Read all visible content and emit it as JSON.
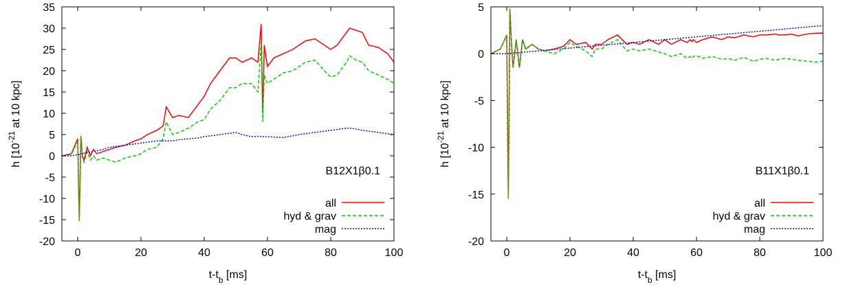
{
  "chart_data": [
    {
      "type": "line",
      "x_label": [
        "t-t",
        "b",
        " [ms]"
      ],
      "y_label": [
        "h [10",
        "-21",
        " at 10 kpc]"
      ],
      "annotation": "B12X1β0.1",
      "legend": "lower right",
      "xlim": [
        -5,
        100
      ],
      "xticks": [
        0,
        20,
        40,
        60,
        80,
        100
      ],
      "ylim": [
        -20,
        35
      ],
      "yticks": [
        -20,
        -15,
        -10,
        -5,
        0,
        5,
        10,
        15,
        20,
        25,
        30,
        35
      ],
      "x": [
        -5,
        -2,
        0,
        0.5,
        1,
        1.5,
        2,
        3,
        4,
        5,
        6,
        8,
        10,
        12,
        15,
        18,
        20,
        22,
        25,
        27,
        28,
        30,
        32,
        35,
        38,
        40,
        42,
        45,
        48,
        50,
        52,
        55,
        57,
        58,
        58.5,
        59,
        60,
        62,
        65,
        68,
        70,
        72,
        75,
        78,
        80,
        82,
        85,
        86,
        88,
        90,
        92,
        95,
        98,
        100
      ],
      "series": [
        {
          "name": "all",
          "color": "#ff0000",
          "dash": "solid",
          "values": [
            0,
            0.5,
            4,
            -15.3,
            4.6,
            0,
            -1,
            2,
            0,
            1.5,
            0.5,
            1,
            1.5,
            2,
            2.5,
            3.5,
            4,
            5,
            6,
            7,
            11.5,
            9,
            9.5,
            9,
            12,
            14,
            17,
            20,
            23,
            23,
            22,
            23,
            22,
            31,
            10,
            26,
            21,
            23,
            24,
            25,
            26,
            27,
            27.5,
            26,
            25,
            26,
            29,
            30,
            29.5,
            29,
            26,
            25.5,
            24,
            22
          ]
        },
        {
          "name": "hyd & grav",
          "color": "#00d000",
          "dash": "dashed",
          "values": [
            0,
            0.3,
            3.5,
            -15.3,
            4.7,
            -0.5,
            -1.5,
            1,
            -1,
            0,
            -1,
            -0.5,
            -1,
            -1.5,
            -0.5,
            0,
            0.5,
            1.5,
            2,
            4,
            8,
            5,
            5.5,
            6.5,
            8,
            8.5,
            11,
            13,
            16,
            16,
            17,
            17,
            15,
            27,
            8,
            19,
            17,
            18,
            19.5,
            20,
            21,
            22,
            22.5,
            20,
            18.5,
            19,
            22,
            23.5,
            22.5,
            22,
            20,
            19,
            18,
            17
          ]
        },
        {
          "name": "mag",
          "color": "#0000ff",
          "dash": "dotted",
          "values": [
            0,
            0,
            0.3,
            0.3,
            0.5,
            0.5,
            0.6,
            0.8,
            0.9,
            1,
            1.2,
            1.5,
            2,
            2.2,
            2.5,
            2.8,
            3,
            3.2,
            3.5,
            3.5,
            3.5,
            3.5,
            3.8,
            4,
            4.2,
            4.5,
            4.7,
            5,
            5.3,
            5.5,
            5,
            4.5,
            4.6,
            4.5,
            4.5,
            4.5,
            4.5,
            4.4,
            4.3,
            4.7,
            5,
            5.2,
            5.5,
            5.8,
            6,
            6.2,
            6.5,
            6.5,
            6.3,
            6,
            5.8,
            5.5,
            5.2,
            5
          ]
        }
      ]
    },
    {
      "type": "line",
      "x_label": [
        "t-t",
        "b",
        " [ms]"
      ],
      "y_label": [
        "h [10",
        "-21",
        " at 10 kpc]"
      ],
      "annotation": "B11X1β0.1",
      "legend": "lower right",
      "xlim": [
        -5,
        100
      ],
      "xticks": [
        0,
        20,
        40,
        60,
        80,
        100
      ],
      "ylim": [
        -20,
        5
      ],
      "yticks": [
        -20,
        -15,
        -10,
        -5,
        0,
        5
      ],
      "x": [
        -5,
        -2,
        0,
        0.5,
        1,
        1.5,
        2,
        3,
        4,
        5,
        6,
        8,
        10,
        12,
        15,
        18,
        20,
        22,
        25,
        27,
        28,
        30,
        32,
        35,
        38,
        40,
        42,
        45,
        48,
        50,
        52,
        55,
        57,
        58,
        58.5,
        59,
        60,
        62,
        65,
        68,
        70,
        72,
        75,
        78,
        80,
        82,
        85,
        86,
        88,
        90,
        92,
        95,
        98,
        100
      ],
      "series": [
        {
          "name": "all",
          "color": "#ff0000",
          "dash": "solid",
          "values": [
            0,
            0.5,
            2,
            -15.5,
            4.8,
            1,
            -1.5,
            1.5,
            -1.5,
            1.5,
            0.5,
            1,
            0.5,
            0.3,
            0.5,
            0.8,
            1.5,
            1,
            1.2,
            0.5,
            1,
            1,
            1.5,
            2,
            1,
            1.2,
            1,
            1.5,
            1,
            1.5,
            1,
            1.5,
            1.2,
            1.5,
            1.3,
            1.5,
            1.2,
            1.5,
            1.8,
            1.5,
            1.8,
            1.7,
            2,
            1.8,
            2,
            2,
            2.1,
            2,
            2,
            2.1,
            1.9,
            2.1,
            2.2,
            2.2
          ]
        },
        {
          "name": "hyd & grav",
          "color": "#00d000",
          "dash": "dashed",
          "values": [
            0,
            0.5,
            2,
            -15.5,
            4.8,
            1,
            -1.5,
            1.5,
            -1.5,
            1.5,
            0.5,
            1,
            0.5,
            0.3,
            0,
            0.5,
            1.2,
            0.8,
            0.3,
            -0.3,
            0.5,
            0.5,
            1,
            1.5,
            0.3,
            0.5,
            0.3,
            0.5,
            0.2,
            0,
            -0.3,
            0,
            -0.5,
            -0.3,
            -0.5,
            -0.3,
            -0.2,
            -0.5,
            -0.3,
            -0.6,
            -0.5,
            -0.7,
            -0.4,
            -0.8,
            -0.6,
            -0.5,
            -0.7,
            -0.6,
            -0.5,
            -0.6,
            -0.7,
            -0.8,
            -0.9,
            -0.8
          ]
        },
        {
          "name": "mag",
          "color": "#0000ff",
          "dash": "dotted",
          "values": [
            0,
            0,
            0,
            0.02,
            0.03,
            0.05,
            0.06,
            0.09,
            0.12,
            0.15,
            0.18,
            0.24,
            0.3,
            0.36,
            0.45,
            0.54,
            0.6,
            0.66,
            0.75,
            0.81,
            0.84,
            0.9,
            0.96,
            1.05,
            1.14,
            1.2,
            1.26,
            1.35,
            1.44,
            1.5,
            1.56,
            1.65,
            1.71,
            1.74,
            1.76,
            1.77,
            1.8,
            1.86,
            1.95,
            2.04,
            2.1,
            2.16,
            2.25,
            2.34,
            2.4,
            2.46,
            2.55,
            2.58,
            2.64,
            2.7,
            2.76,
            2.85,
            2.94,
            3
          ]
        }
      ]
    }
  ]
}
